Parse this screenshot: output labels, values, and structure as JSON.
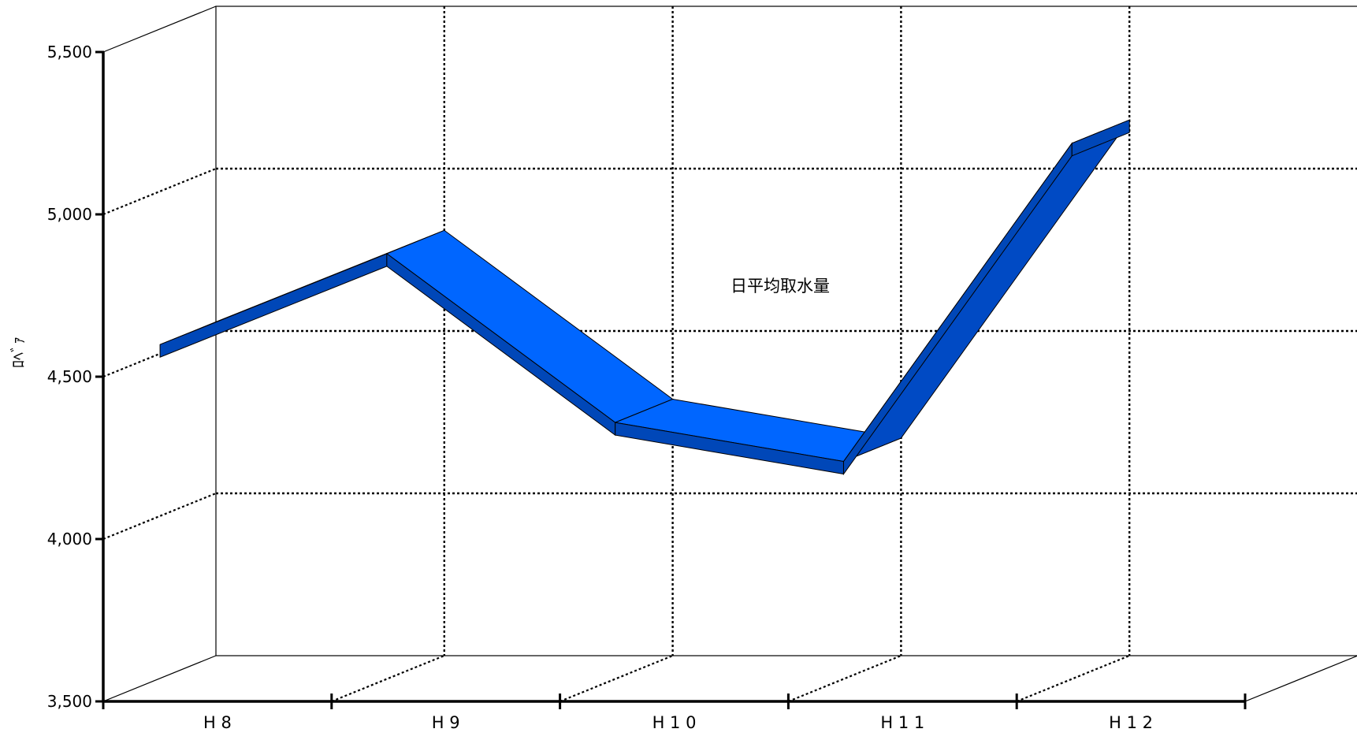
{
  "chart_data": {
    "type": "line",
    "subtype": "3d-ribbon",
    "title": "",
    "xlabel": "",
    "ylabel": "ﾛﾍﾞｧ",
    "categories": [
      "H 8",
      "H 9",
      "H 1 0",
      "H 1 1",
      "H 1 2"
    ],
    "series": [
      {
        "name": "日平均取水量",
        "values": [
          4530,
          4810,
          4290,
          4170,
          5150
        ],
        "color": "#0066ff"
      }
    ],
    "yticks": [
      "3,500",
      "4,000",
      "4,500",
      "5,000",
      "5,500"
    ],
    "ylim": [
      3500,
      5500
    ],
    "grid": true
  }
}
